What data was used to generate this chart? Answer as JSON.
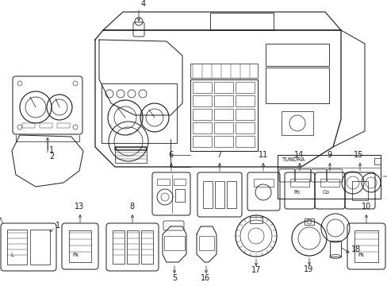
{
  "fig_width": 4.89,
  "fig_height": 3.6,
  "dpi": 100,
  "bg": "#ffffff",
  "lc": "#1a1a1a",
  "lw": 0.6,
  "xlim": [
    0,
    489
  ],
  "ylim": [
    0,
    360
  ]
}
